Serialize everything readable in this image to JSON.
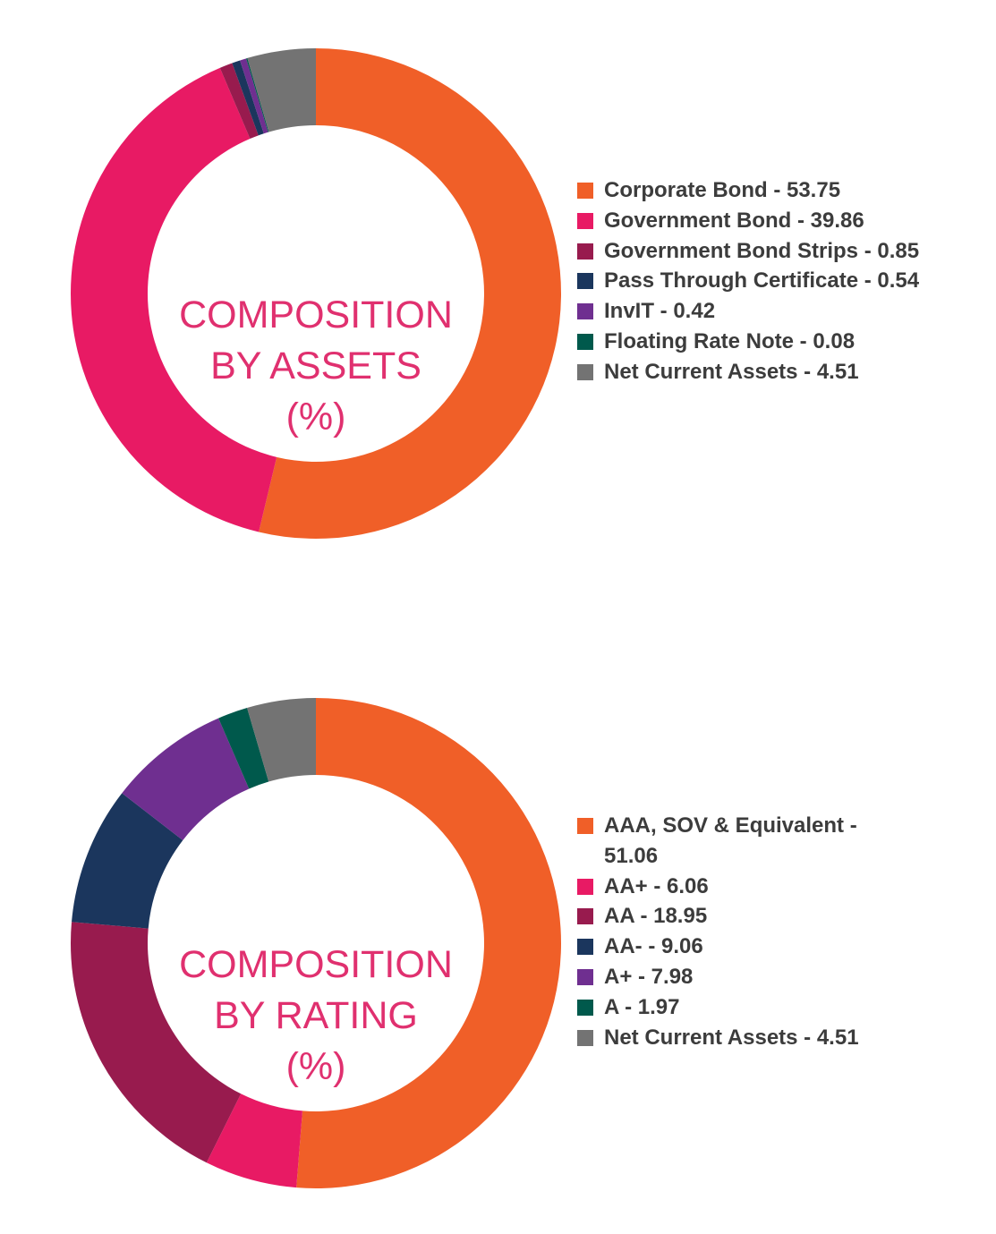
{
  "colors": {
    "orange": "#f05f28",
    "pink": "#e81a64",
    "maroon": "#981b4e",
    "navy": "#1b365d",
    "purple": "#6f2f90",
    "teal": "#00594c",
    "gray": "#737373",
    "center_text": "#e0306f",
    "legend_text": "#3c3c3c"
  },
  "chart_data": [
    {
      "type": "pie",
      "subtype": "donut",
      "center_text": [
        "COMPOSITION",
        "BY ASSETS",
        "(%)"
      ],
      "slices": [
        {
          "label": "Corporate Bond - 53.75",
          "value": 53.75,
          "color": "#f05f28"
        },
        {
          "label": "Government Bond - 39.86",
          "value": 39.86,
          "color": "#e81a64"
        },
        {
          "label": "Government Bond Strips - 0.85",
          "value": 0.85,
          "color": "#981b4e"
        },
        {
          "label": "Pass Through Certificate - 0.54",
          "value": 0.54,
          "color": "#1b365d"
        },
        {
          "label": "InvIT - 0.42",
          "value": 0.42,
          "color": "#6f2f90"
        },
        {
          "label": "Floating Rate Note - 0.08",
          "value": 0.08,
          "color": "#00594c"
        },
        {
          "label": "Net Current Assets - 4.51",
          "value": 4.51,
          "color": "#737373"
        }
      ],
      "legend_position": "right"
    },
    {
      "type": "pie",
      "subtype": "donut",
      "center_text": [
        "COMPOSITION",
        "BY RATING",
        "(%)"
      ],
      "slices": [
        {
          "label": "AAA, SOV & Equivalent - 51.06",
          "value": 51.06,
          "color": "#f05f28"
        },
        {
          "label": "AA+ - 6.06",
          "value": 6.06,
          "color": "#e81a64"
        },
        {
          "label": "AA - 18.95",
          "value": 18.95,
          "color": "#981b4e"
        },
        {
          "label": "AA- - 9.06",
          "value": 9.06,
          "color": "#1b365d"
        },
        {
          "label": "A+ - 7.98",
          "value": 7.98,
          "color": "#6f2f90"
        },
        {
          "label": "A - 1.97",
          "value": 1.97,
          "color": "#00594c"
        },
        {
          "label": "Net Current Assets - 4.51",
          "value": 4.51,
          "color": "#737373"
        }
      ],
      "legend_position": "right"
    }
  ]
}
